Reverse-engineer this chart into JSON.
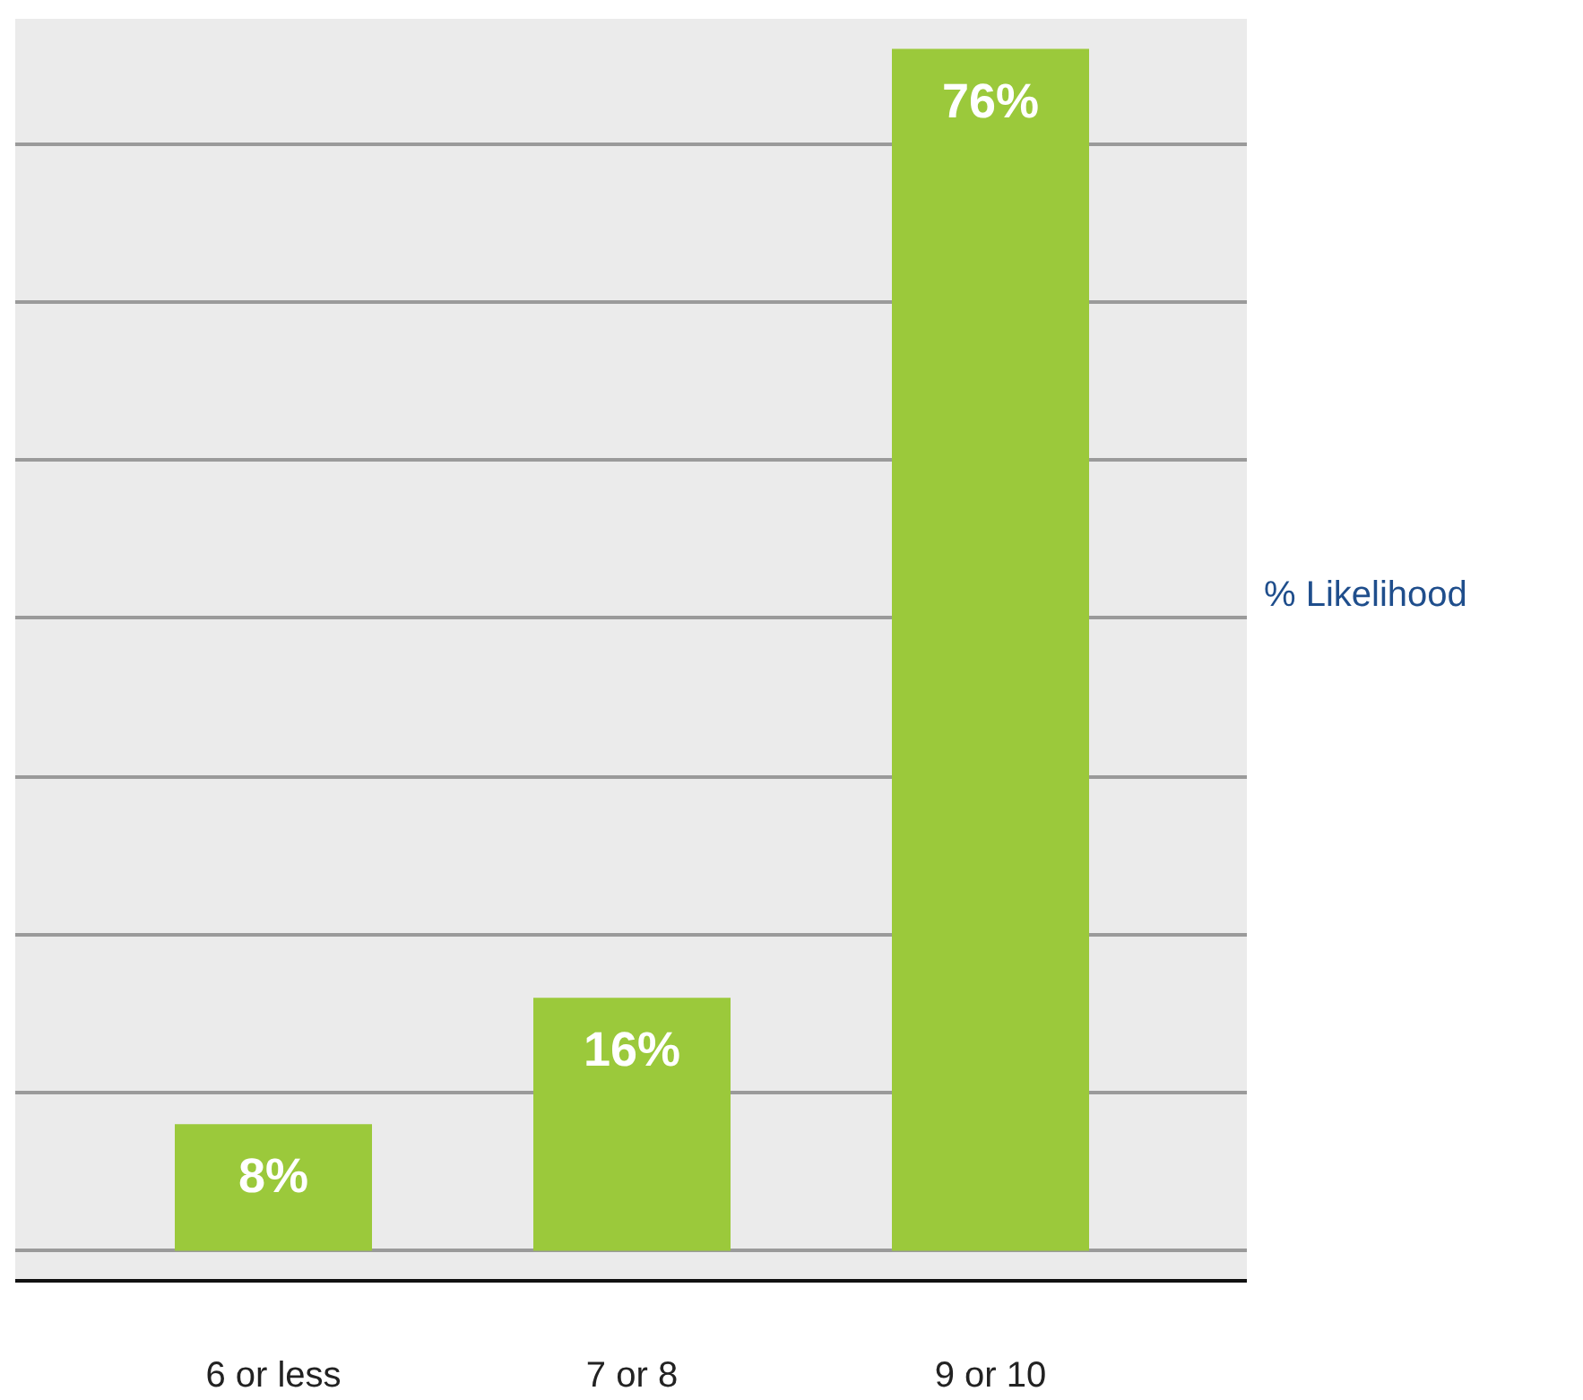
{
  "chart_data": {
    "type": "bar",
    "ylabel": "% Likelihood",
    "categories": [
      "6 or less",
      "7 or 8",
      "9 or 10"
    ],
    "values": [
      8,
      16,
      76
    ],
    "color": "#9bc93b",
    "value_labels": [
      "8%",
      "16%",
      "76%"
    ],
    "grid": "y",
    "tick_labels": "x"
  }
}
